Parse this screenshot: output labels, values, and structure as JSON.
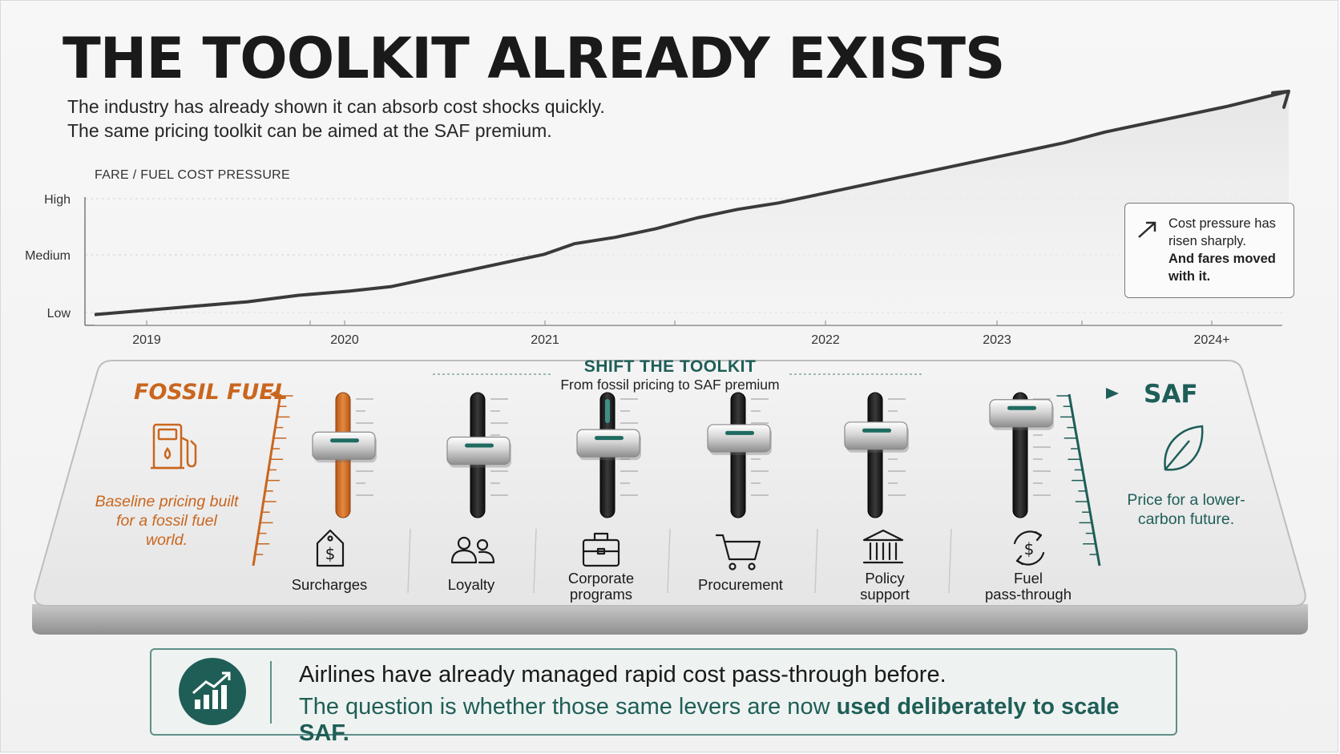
{
  "title": "THE TOOLKIT ALREADY EXISTS",
  "subtitle_lines": [
    "The industry has already shown it can absorb cost shocks quickly.",
    "The same pricing toolkit can be aimed at the SAF premium."
  ],
  "chart_data": {
    "type": "line",
    "title": "FARE / FUEL COST PRESSURE",
    "y_categories": [
      "Low",
      "Medium",
      "High"
    ],
    "x_ticks": [
      "2019",
      "2020",
      "2021",
      "2022",
      "2023",
      "2024+"
    ],
    "xlim": [
      2018.75,
      2024.6
    ],
    "ylim": [
      0,
      1
    ],
    "series": [
      {
        "x": [
          2018.75,
          2019.0,
          2019.25,
          2019.5,
          2019.75,
          2020.0,
          2020.2,
          2020.4,
          2020.6,
          2020.8,
          2020.95,
          2021.1,
          2021.3,
          2021.5,
          2021.7,
          2021.9,
          2022.1,
          2022.3,
          2022.5,
          2022.7,
          2022.9,
          2023.1,
          2023.3,
          2023.5,
          2023.7,
          2023.9,
          2024.1,
          2024.3,
          2024.6
        ],
        "y": [
          0.02,
          0.04,
          0.06,
          0.08,
          0.11,
          0.13,
          0.15,
          0.19,
          0.23,
          0.27,
          0.3,
          0.35,
          0.38,
          0.42,
          0.47,
          0.51,
          0.54,
          0.58,
          0.62,
          0.66,
          0.7,
          0.74,
          0.78,
          0.82,
          0.87,
          0.91,
          0.95,
          0.99,
          1.06
        ]
      }
    ],
    "grid": true
  },
  "callout": {
    "line_normal": "Cost pressure has risen sharply.",
    "line_bold": "And fares moved with it."
  },
  "toolkit": {
    "title": "SHIFT THE TOOLKIT",
    "subtitle": "From fossil pricing to SAF premium",
    "left_label": "FOSSIL FUEL",
    "left_text": "Baseline pricing built for a fossil fuel world.",
    "right_label": "SAF",
    "right_text": "Price for a lower-carbon future.",
    "left_color": "#c9661e",
    "right_color": "#1e5e58",
    "levers": [
      {
        "label": "Surcharges",
        "icon": "price-tag-icon",
        "level": 0.62
      },
      {
        "label": "Loyalty",
        "icon": "people-icon",
        "level": 0.58
      },
      {
        "label": "Corporate programs",
        "icon": "briefcase-icon",
        "level": 0.64
      },
      {
        "label": "Procurement",
        "icon": "cart-icon",
        "level": 0.68
      },
      {
        "label": "Policy support",
        "icon": "bank-icon",
        "level": 0.7
      },
      {
        "label": "Fuel pass-through",
        "icon": "fuel-cycle-icon",
        "level": 0.88
      }
    ]
  },
  "banner": {
    "icon": "growth-chart-icon",
    "line1": "Airlines have already managed rapid cost pass-through before.",
    "line2_normal": "The question is whether those same levers are now ",
    "line2_bold": "used deliberately to scale SAF."
  }
}
